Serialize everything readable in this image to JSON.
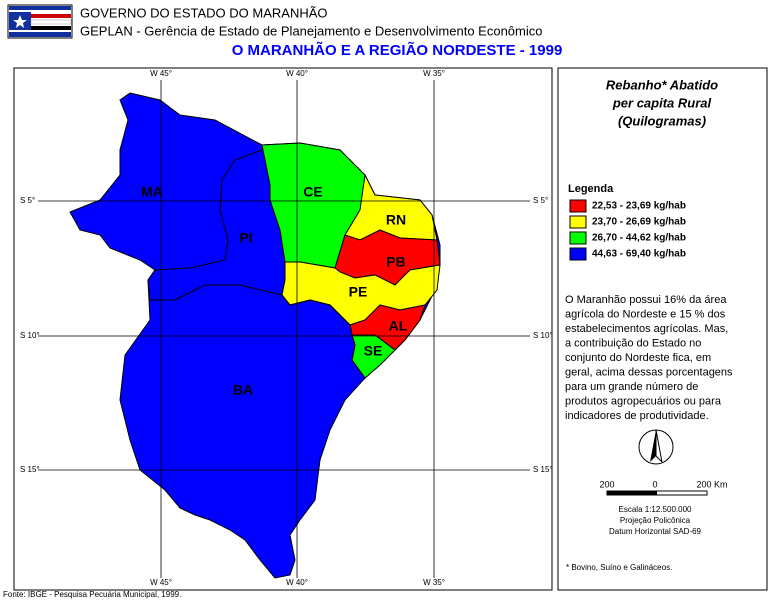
{
  "header": {
    "line1": "GOVERNO DO ESTADO DO MARANHÃO",
    "line2": "GEPLAN - Gerência de Estado de Planejamento e Desenvolvimento Econômico",
    "title": "O MARANHÃO E A REGIÃO NORDESTE - 1999"
  },
  "map": {
    "lon_labels": [
      "W 45°",
      "W 40°",
      "W 35°"
    ],
    "lat_labels": [
      "S 5°",
      "S 10°",
      "S 15°"
    ],
    "states": [
      {
        "label": "MA",
        "color": "#0000ff"
      },
      {
        "label": "PI",
        "color": "#0000ff"
      },
      {
        "label": "BA",
        "color": "#0000ff"
      },
      {
        "label": "CE",
        "color": "#00ff00"
      },
      {
        "label": "RN",
        "color": "#ffff00"
      },
      {
        "label": "PB",
        "color": "#ff0000"
      },
      {
        "label": "PE",
        "color": "#ffff00"
      },
      {
        "label": "AL",
        "color": "#ff0000"
      },
      {
        "label": "SE",
        "color": "#00ff00"
      }
    ]
  },
  "panel": {
    "title": [
      "Rebanho* Abatido",
      "per capita Rural",
      "(Quilogramas)"
    ],
    "legend_title": "Legenda",
    "legend": [
      {
        "label": "22,53 - 23,69 kg/hab",
        "color": "#ff0000"
      },
      {
        "label": "23,70 - 26,69 kg/hab",
        "color": "#ffff00"
      },
      {
        "label": "26,70 - 44,62 kg/hab",
        "color": "#00ff00"
      },
      {
        "label": "44,63 - 69,40 kg/hab",
        "color": "#0000ff"
      }
    ],
    "text": [
      "O Maranhão possui 16% da área",
      "agrícola do Nordeste e 15 % dos",
      "estabelecimentos agrícolas. Mas,",
      "a contribuição do Estado no",
      "conjunto do Nordeste fica, em",
      "geral, acima dessas porcentagens",
      "para um grande número de",
      "produtos agropecuários ou para",
      "indicadores de produtividade."
    ],
    "scale_labels": [
      "200",
      "0",
      "200 Km"
    ],
    "scale_info": [
      "Escala 1:12.500.000",
      "Projeção Policônica",
      "Datum Horizontal SAD-69"
    ],
    "footnote": "* Bovino, Suíno e Galináceos."
  },
  "source": "Fonte: IBGE - Pesquisa Pecuária Municipal, 1999."
}
